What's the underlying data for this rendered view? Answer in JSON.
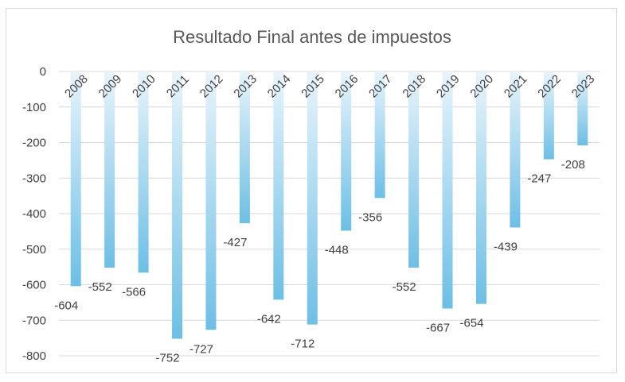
{
  "chart_data": {
    "type": "bar",
    "title": "Resultado Final antes de impuestos",
    "xlabel": "",
    "ylabel": "",
    "categories": [
      "2008",
      "2009",
      "2010",
      "2011",
      "2012",
      "2013",
      "2014",
      "2015",
      "2016",
      "2017",
      "2018",
      "2019",
      "2020",
      "2021",
      "2022",
      "2023"
    ],
    "values": [
      -604,
      -552,
      -566,
      -752,
      -727,
      -427,
      -642,
      -712,
      -448,
      -356,
      -552,
      -667,
      -654,
      -439,
      -247,
      -208
    ],
    "data_labels": [
      "-604",
      "-552",
      "-566",
      "-752",
      "-727",
      "-427",
      "-642",
      "-712",
      "-448",
      "-356",
      "-552",
      "-667",
      "-654",
      "-439",
      "-247",
      "-208"
    ],
    "ylim": [
      -800,
      0
    ],
    "yticks": [
      0,
      -100,
      -200,
      -300,
      -400,
      -500,
      -600,
      -700,
      -800
    ],
    "ytick_labels": [
      "0",
      "-100",
      "-200",
      "-300",
      "-400",
      "-500",
      "-600",
      "-700",
      "-800"
    ],
    "grid": true,
    "legend": "none",
    "colors": {
      "bar_top": "#e8f4fb",
      "bar_bottom": "#6cbfe6",
      "grid": "#d9d9d9",
      "text": "#404040",
      "title": "#595959"
    }
  }
}
